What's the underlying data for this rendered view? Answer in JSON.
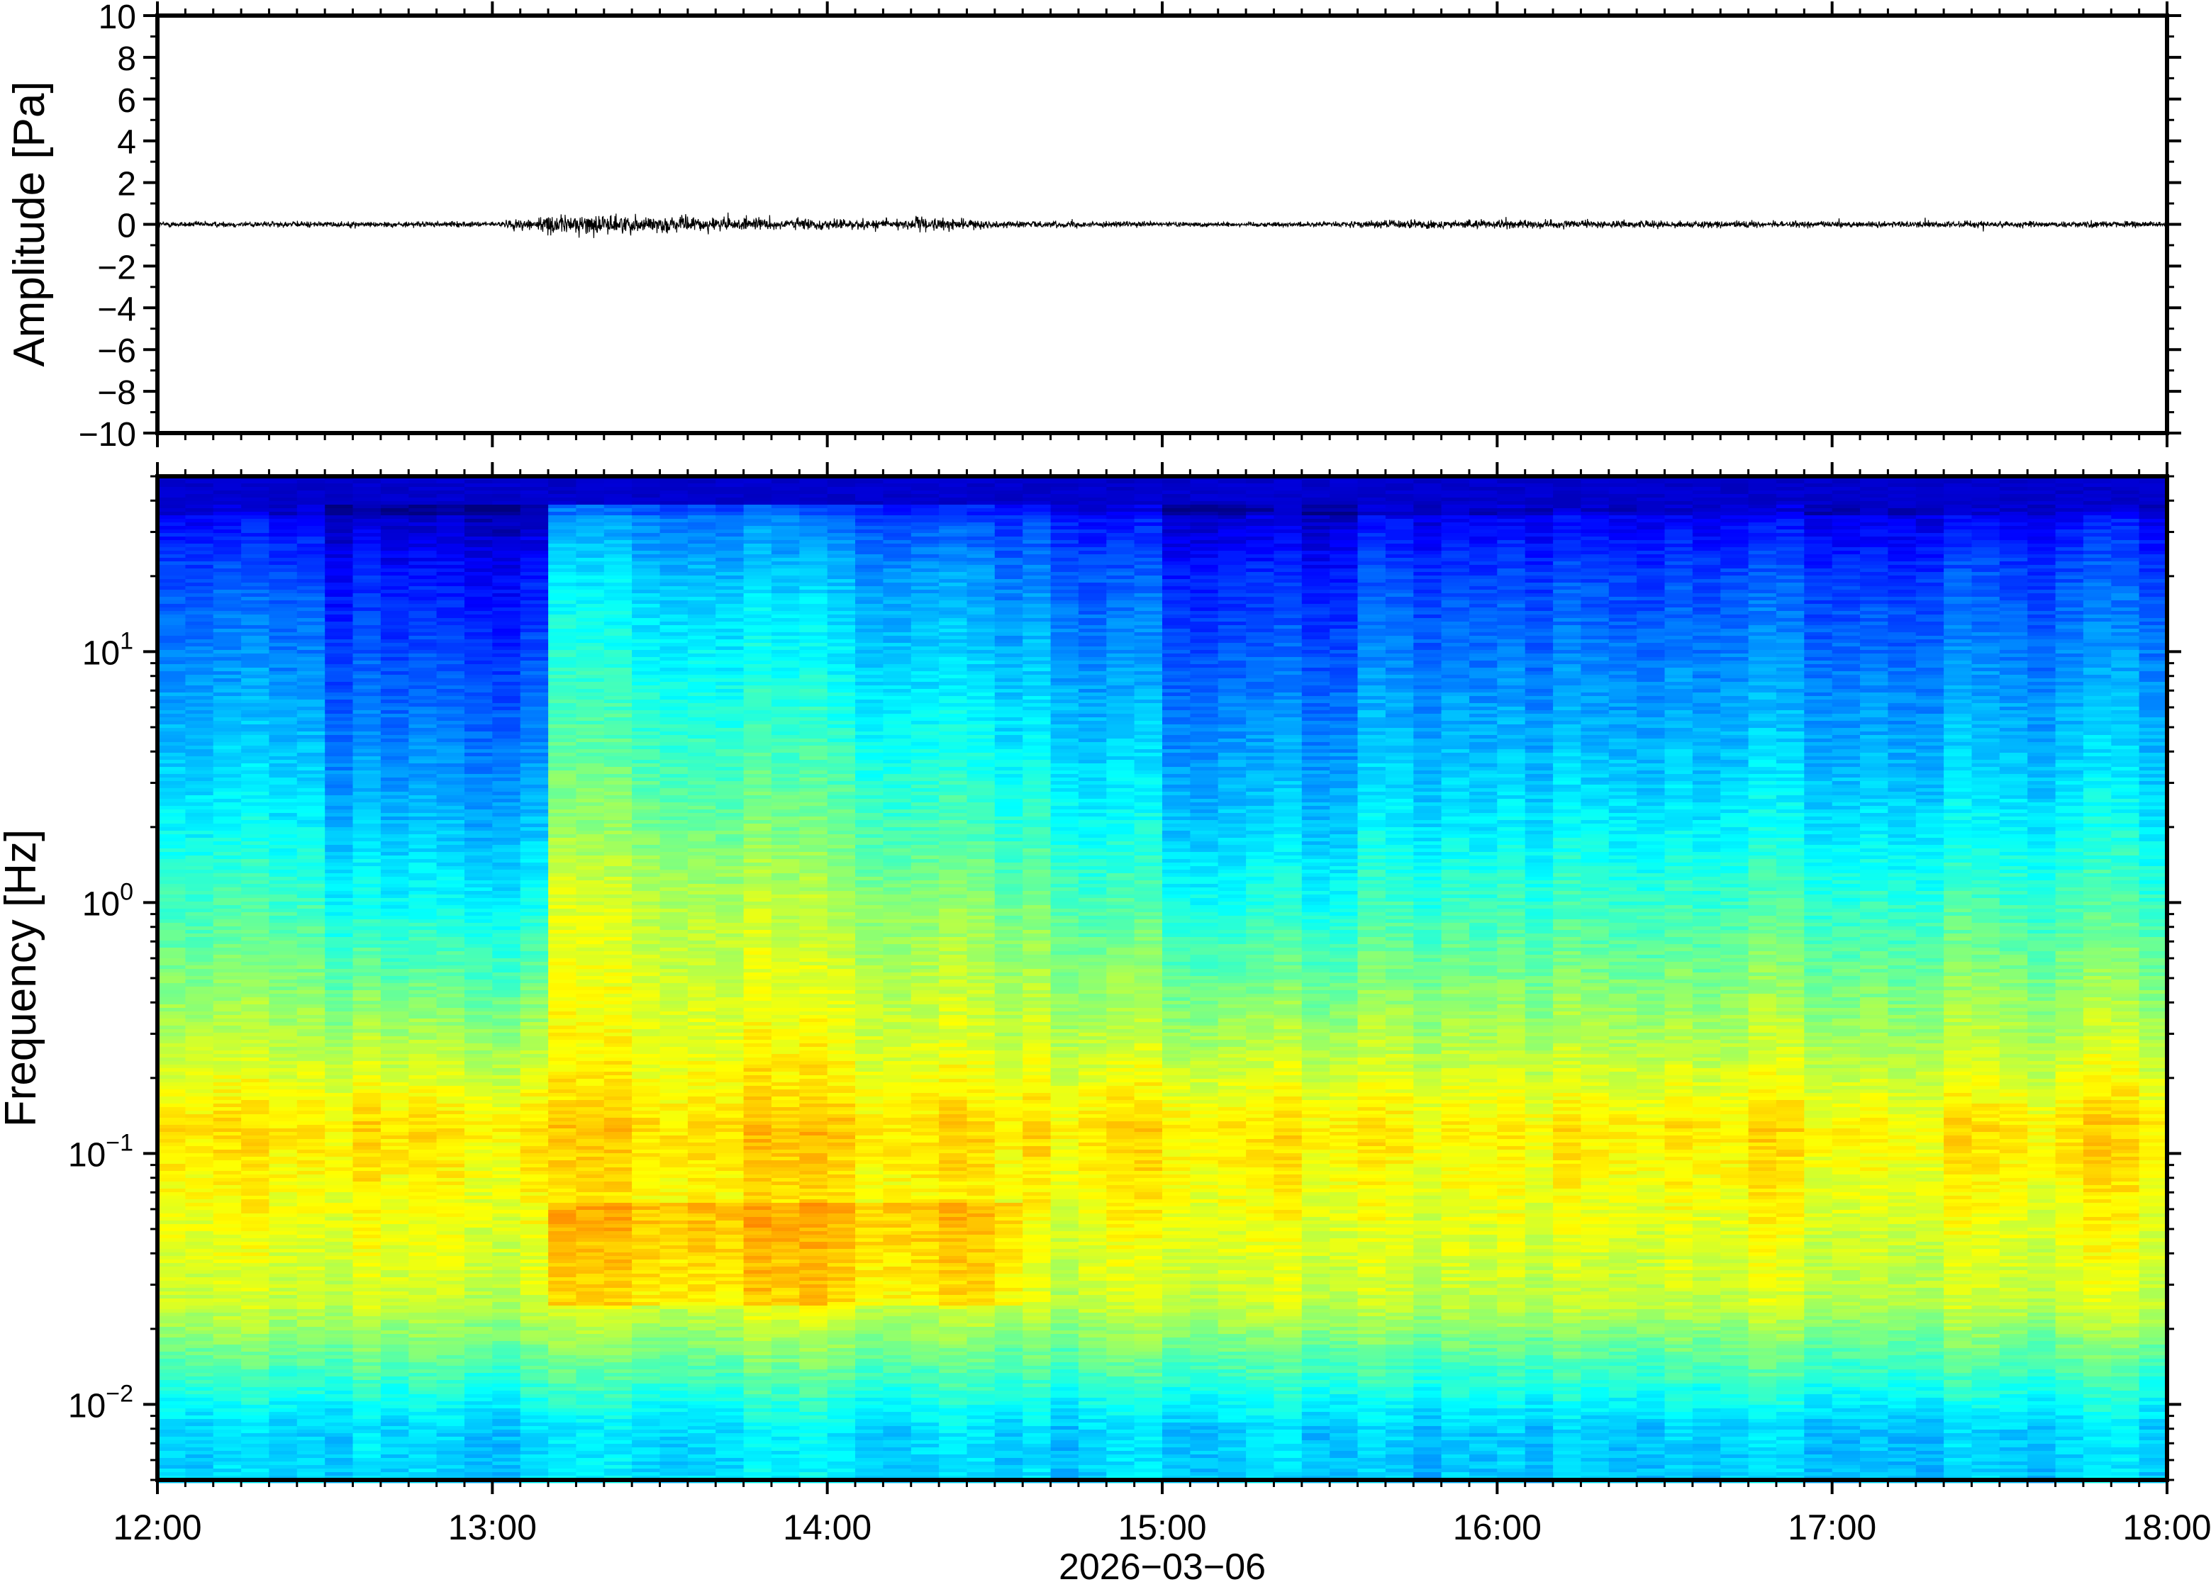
{
  "chart_data": [
    {
      "type": "line",
      "panel": "waveform",
      "ylabel": "Amplitude [Pa]",
      "ylim": [
        -10,
        10
      ],
      "yticks": [
        -10,
        -8,
        -6,
        -4,
        -2,
        0,
        2,
        4,
        6,
        8,
        10
      ],
      "ytick_labels": [
        "−10",
        "−8",
        "−6",
        "−4",
        "−2",
        "0",
        "2",
        "4",
        "6",
        "8",
        "10"
      ],
      "xlim": [
        "12:00",
        "18:00"
      ],
      "color": "#000000",
      "envelope": {
        "description_hours": [
          12.0,
          12.5,
          13.0,
          13.17,
          13.3,
          13.5,
          13.8,
          14.1,
          14.3,
          14.5,
          15.0,
          15.5,
          15.7,
          16.2,
          17.0,
          17.5,
          18.0
        ],
        "amplitude_pa": [
          0.3,
          0.3,
          0.25,
          0.9,
          1.0,
          0.8,
          0.6,
          0.5,
          0.7,
          0.35,
          0.25,
          0.25,
          0.45,
          0.4,
          0.3,
          0.35,
          0.3
        ]
      }
    },
    {
      "type": "heatmap",
      "panel": "spectrogram",
      "ylabel": "Frequency [Hz]",
      "yscale": "log",
      "ylim": [
        0.005,
        50
      ],
      "yticks": [
        0.01,
        0.1,
        1,
        10
      ],
      "ytick_labels": [
        {
          "base": "10",
          "exp": "−2"
        },
        {
          "base": "10",
          "exp": "−1"
        },
        {
          "base": "10",
          "exp": "0"
        },
        {
          "base": "10",
          "exp": "1"
        }
      ],
      "colormap": "jet",
      "colormap_colors": [
        "#00007f",
        "#0000ff",
        "#007fff",
        "#00ffff",
        "#7fff7f",
        "#ffff00",
        "#ff7f00",
        "#ff0000",
        "#7f0000"
      ],
      "time_columns": 72,
      "loud_interval_hours": [
        13.17,
        14.75
      ],
      "quiet_interval_hours": [
        12.5,
        13.17
      ]
    }
  ],
  "xaxis": {
    "tick_labels": [
      "12:00",
      "13:00",
      "14:00",
      "15:00",
      "16:00",
      "17:00",
      "18:00"
    ],
    "date_label": "2026−03−06"
  }
}
